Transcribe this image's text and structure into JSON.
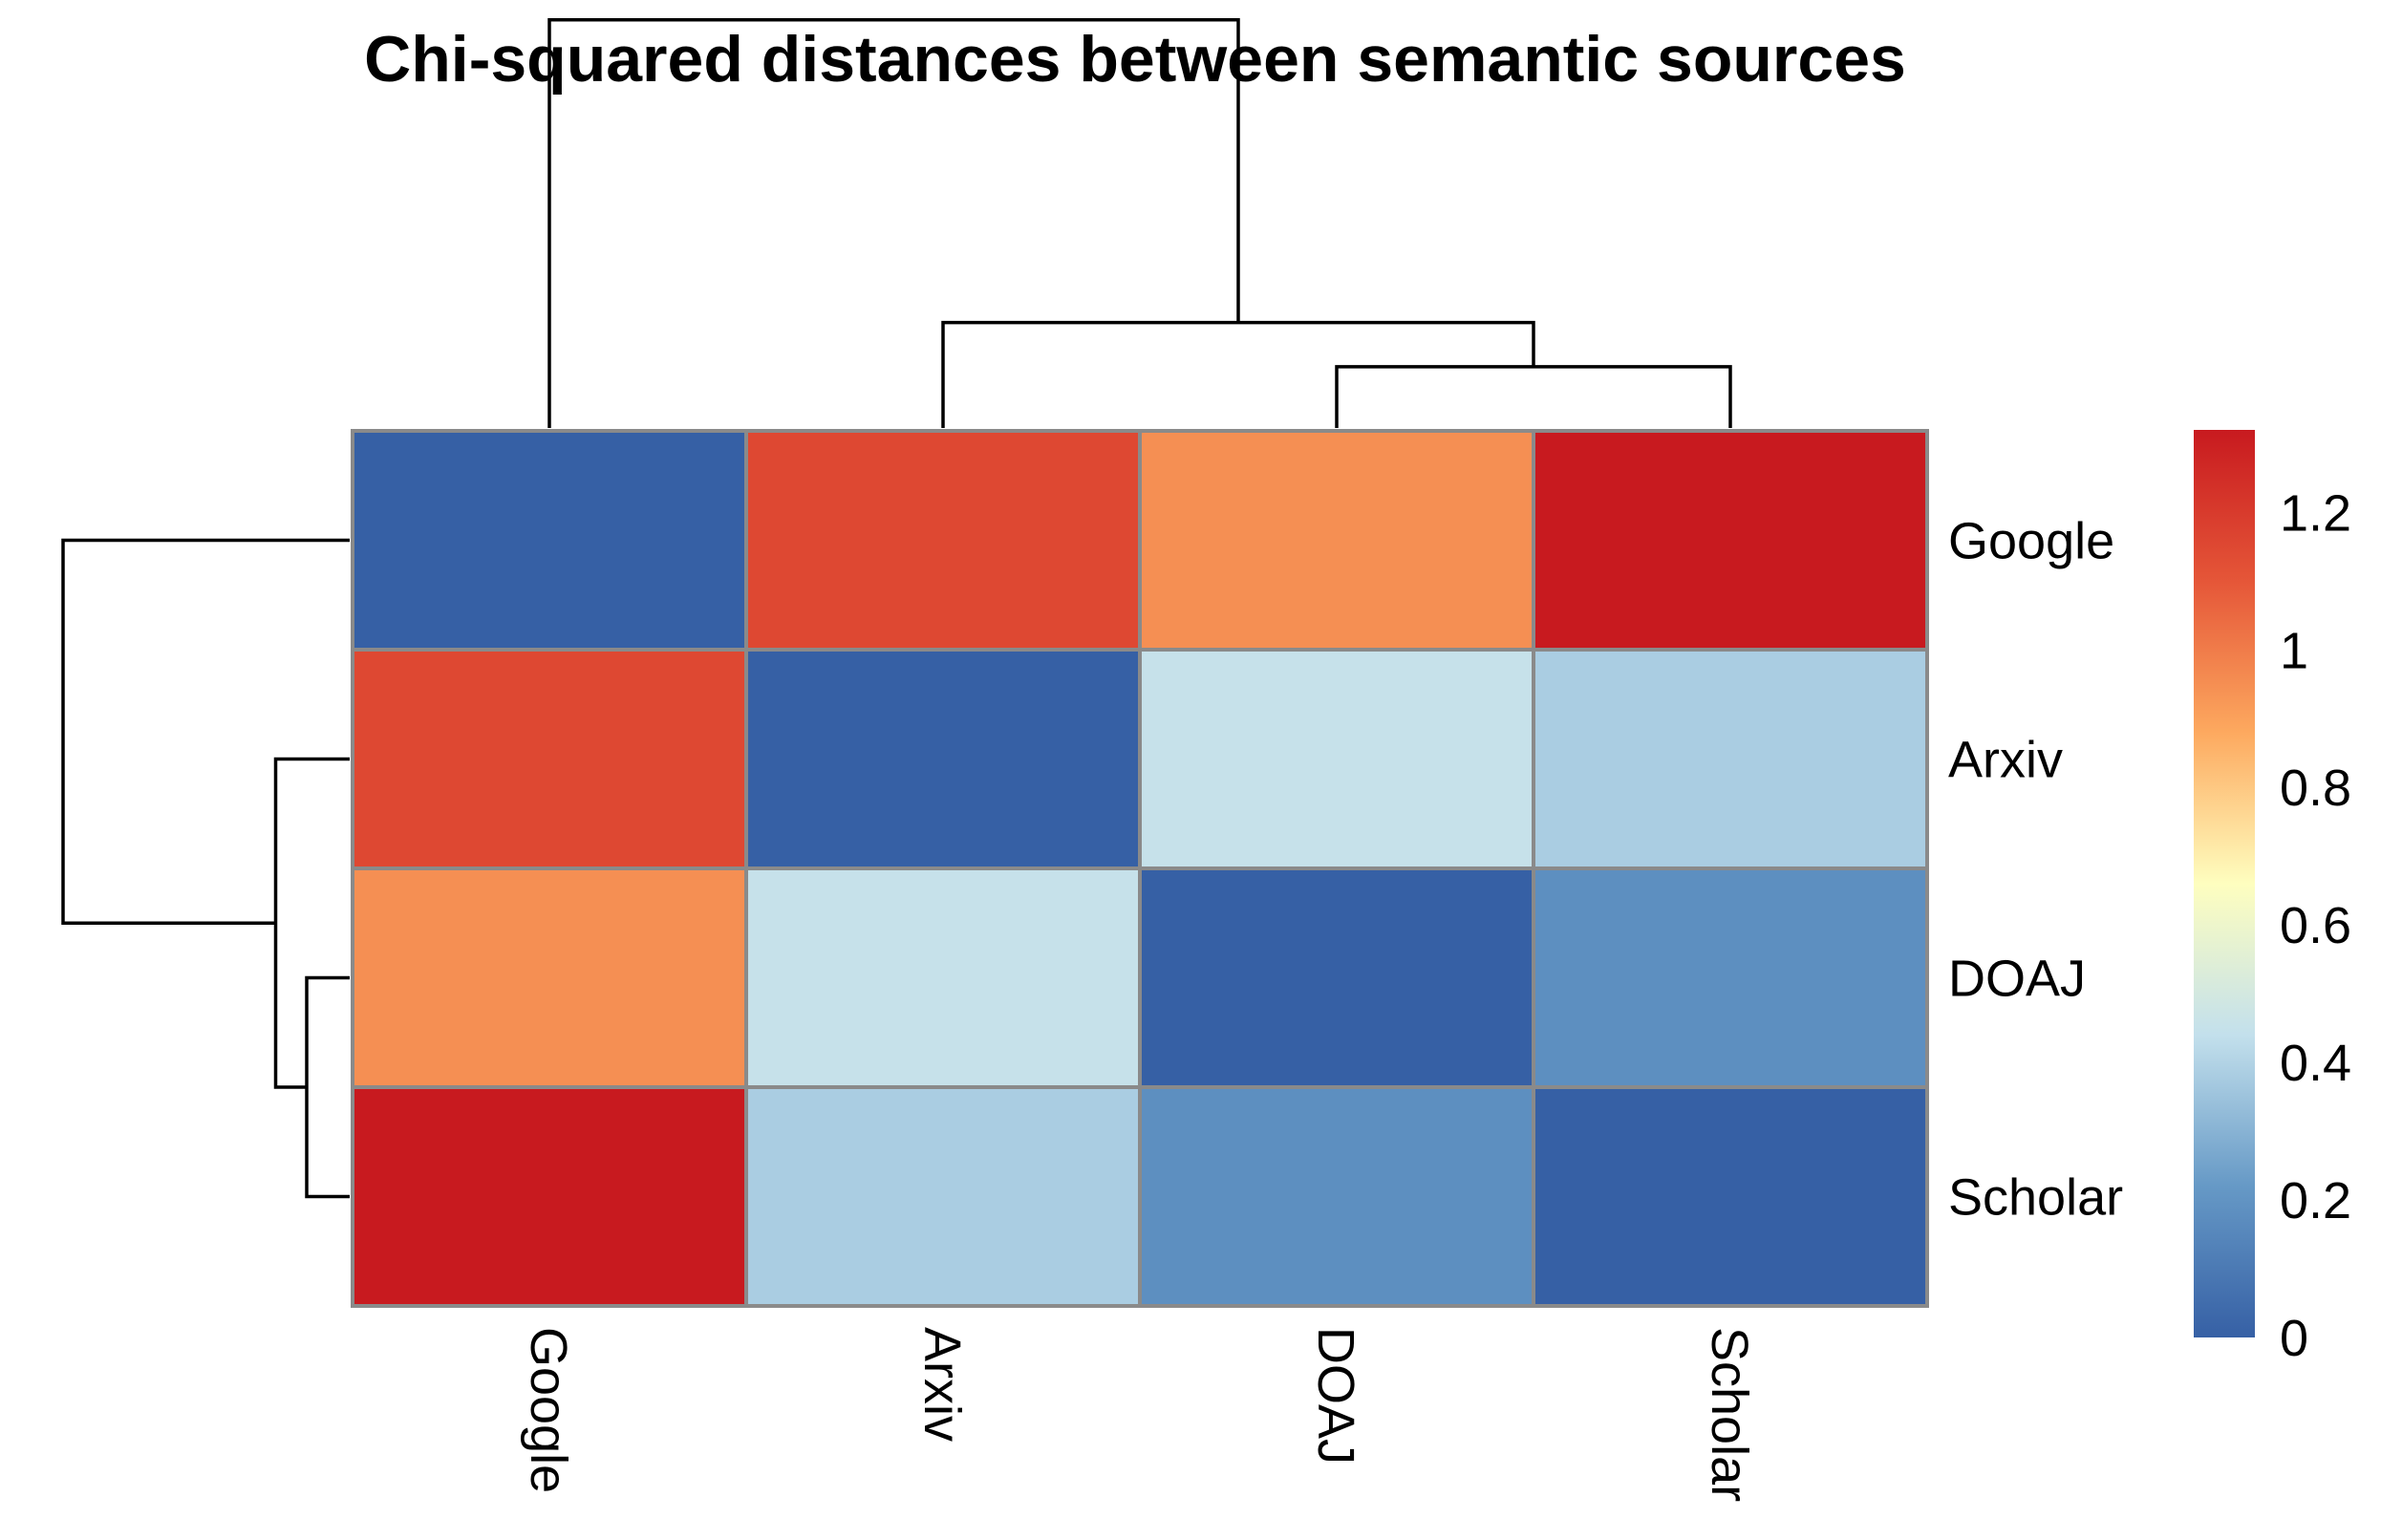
{
  "chart_data": {
    "type": "heatmap",
    "title": "Chi-squared distances between semantic sources",
    "rows": [
      "Google",
      "Arxiv",
      "DOAJ",
      "Scholar"
    ],
    "columns": [
      "Google",
      "Arxiv",
      "DOAJ",
      "Scholar"
    ],
    "values": [
      [
        0.0,
        1.15,
        0.95,
        1.32
      ],
      [
        1.15,
        0.0,
        0.45,
        0.38
      ],
      [
        0.95,
        0.45,
        0.0,
        0.18
      ],
      [
        1.32,
        0.38,
        0.18,
        0.0
      ]
    ],
    "colorbar": {
      "range": [
        0,
        1.32
      ],
      "ticks": [
        "0",
        "0.2",
        "0.4",
        "0.6",
        "0.8",
        "1",
        "1.2"
      ],
      "tick_values": [
        0,
        0.2,
        0.4,
        0.6,
        0.8,
        1.0,
        1.2
      ],
      "colors": [
        "#3660a5",
        "#6699c6",
        "#c3e0ec",
        "#fefebf",
        "#fda95f",
        "#e55638",
        "#c81a1f"
      ]
    },
    "dendrogram": {
      "order": [
        "Google",
        "Arxiv",
        "DOAJ",
        "Scholar"
      ],
      "merges": [
        {
          "left": "DOAJ",
          "right": "Scholar",
          "height": 0.18
        },
        {
          "left": "Arxiv",
          "right": "DOAJ+Scholar",
          "height": 0.31
        },
        {
          "left": "Google",
          "right": "Arxiv+DOAJ+Scholar",
          "height": 1.2
        }
      ]
    }
  }
}
